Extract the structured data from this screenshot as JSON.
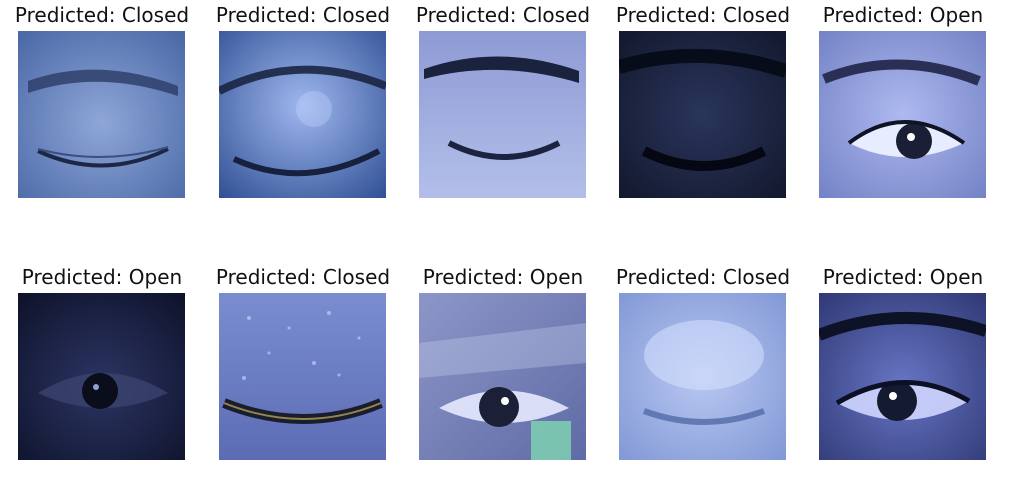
{
  "figure": {
    "panels": [
      {
        "title": "Predicted: Closed",
        "eye_state": "closed",
        "image": "eye-closed-light"
      },
      {
        "title": "Predicted: Closed",
        "eye_state": "closed",
        "image": "eye-closed-shimmer"
      },
      {
        "title": "Predicted: Closed",
        "eye_state": "closed",
        "image": "eye-closed-thick-brow"
      },
      {
        "title": "Predicted: Closed",
        "eye_state": "closed",
        "image": "eye-closed-dark"
      },
      {
        "title": "Predicted: Open",
        "eye_state": "open",
        "image": "eye-open-bright"
      },
      {
        "title": "Predicted: Open",
        "eye_state": "open",
        "image": "eye-open-dark"
      },
      {
        "title": "Predicted: Closed",
        "eye_state": "closed",
        "image": "eye-closed-glitter"
      },
      {
        "title": "Predicted: Open",
        "eye_state": "open",
        "image": "eye-open-glasses"
      },
      {
        "title": "Predicted: Closed",
        "eye_state": "closed",
        "image": "eye-closed-blurry"
      },
      {
        "title": "Predicted: Open",
        "eye_state": "open",
        "image": "eye-open-lashes"
      }
    ]
  }
}
